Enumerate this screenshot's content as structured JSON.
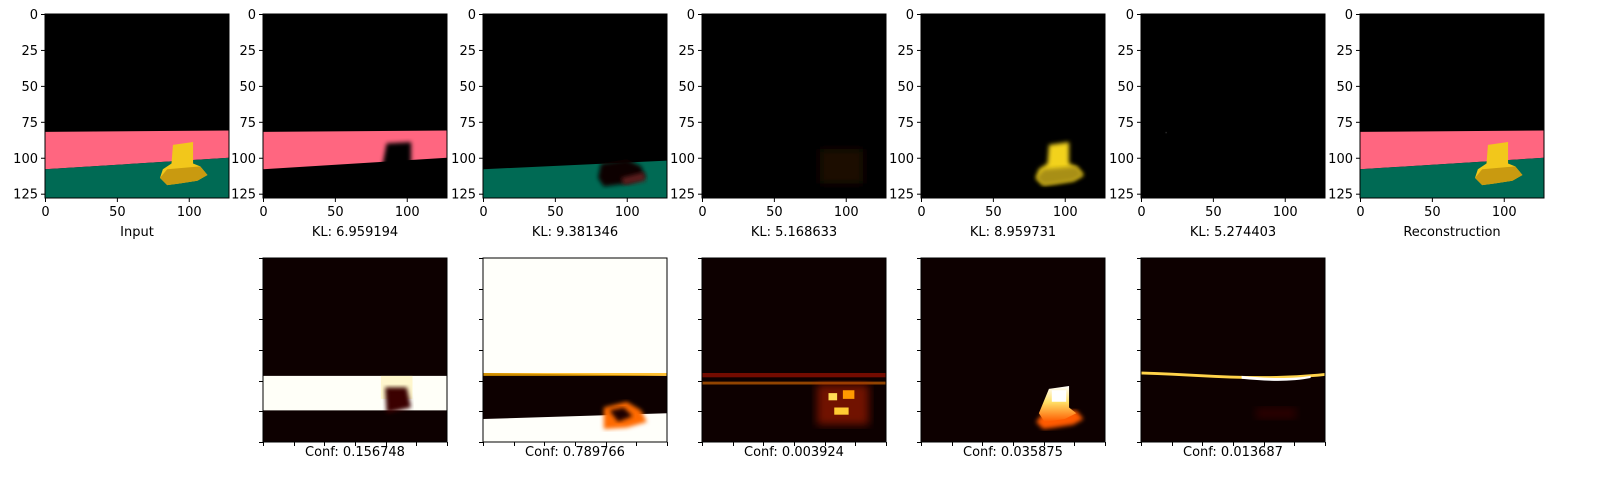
{
  "chart_data": {
    "type": "image-grid",
    "image_axis_ticks": [
      0,
      25,
      50,
      75,
      100,
      125
    ],
    "image_axis_xticks": [
      0,
      50,
      100
    ],
    "image_extent": [
      0,
      128
    ],
    "top_row": [
      {
        "caption": "Input",
        "kind": "input"
      },
      {
        "caption": "KL: 6.959194",
        "kind": "kl1"
      },
      {
        "caption": "KL: 9.381346",
        "kind": "kl2"
      },
      {
        "caption": "KL: 5.168633",
        "kind": "kl3"
      },
      {
        "caption": "KL: 8.959731",
        "kind": "kl4"
      },
      {
        "caption": "KL: 5.274403",
        "kind": "kl5"
      },
      {
        "caption": "Reconstruction",
        "kind": "input"
      }
    ],
    "bottom_row": [
      {
        "caption": "Conf: 0.156748",
        "kind": "m1"
      },
      {
        "caption": "Conf: 0.789766",
        "kind": "m2"
      },
      {
        "caption": "Conf: 0.003924",
        "kind": "m3"
      },
      {
        "caption": "Conf: 0.035875",
        "kind": "m4"
      },
      {
        "caption": "Conf: 0.013687",
        "kind": "m5"
      }
    ],
    "colors": {
      "background": "#000000",
      "wall": "#ff6680",
      "floor": "#006a54",
      "object": "#f2c71b",
      "heat_dark": "#0d0000",
      "heat_hot": "#ffffff"
    }
  }
}
